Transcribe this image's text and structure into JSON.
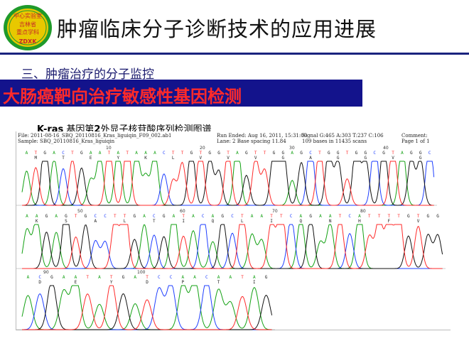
{
  "logo": {
    "line1": "中心实验室",
    "line2": "吉林省",
    "line3": "重点学科",
    "line4": "ZDXK",
    "colors": {
      "ring": "#1f9a2a",
      "inner": "#e8c800",
      "text": "#c62828"
    }
  },
  "title": "肿瘤临床分子诊断技术的应用进展",
  "subtitle": "三、肿瘤治疗的分子监控",
  "banner": "大肠癌靶向治疗敏感性基因检测",
  "caption": {
    "prefix": "K-ras",
    "middle": " 基因第",
    "exon": "2",
    "suffix": "外显子核苷酸序列检测图谱"
  },
  "chromatogram": {
    "header": {
      "file": "File: 2011-08-16_SBQ_20110816_Kras_liguiqin_F09_002.ab1",
      "sample": "Sample: SBQ_20110816_Kras_liguiqin",
      "run_ended": "Run Ended: Aug 16, 2011, 15:31:00",
      "lane": "Lane: 2   Base spacing 11.84",
      "signal": "Signal G:465 A:303 T:237 C:106",
      "bases": "109 bases in 11435 scans",
      "comment": "Comment:",
      "page": "Page 1 of 1"
    },
    "rows": [
      {
        "sequence": "ATGACTGAATATAAACTTGTGGTAGTTGGAGCTGGTGGCGTAGGC",
        "aminoacids": "M  T  E  Y  K  L  V  V  V  G  A  G  G  V  G",
        "ticks": [
          "10",
          "20",
          "30",
          "40"
        ]
      },
      {
        "sequence": "AAGAGTGCCTTGACGATACAGCTAATTCAGAATCATTTTGTGG",
        "aminoacids": "K  S  A  L  T  I  Q  L  I  Q  N  H  F  V",
        "ticks": [
          "50",
          "60",
          "70",
          "80"
        ]
      },
      {
        "sequence": "ACGAATATGATCCAACAATAG",
        "aminoacids": "D  E  Y  D  P  T  I",
        "ticks": [
          "90",
          "100"
        ]
      }
    ],
    "base_colors": {
      "A": "#13a113",
      "C": "#1f3fff",
      "G": "#111111",
      "T": "#ff2a2a"
    }
  }
}
